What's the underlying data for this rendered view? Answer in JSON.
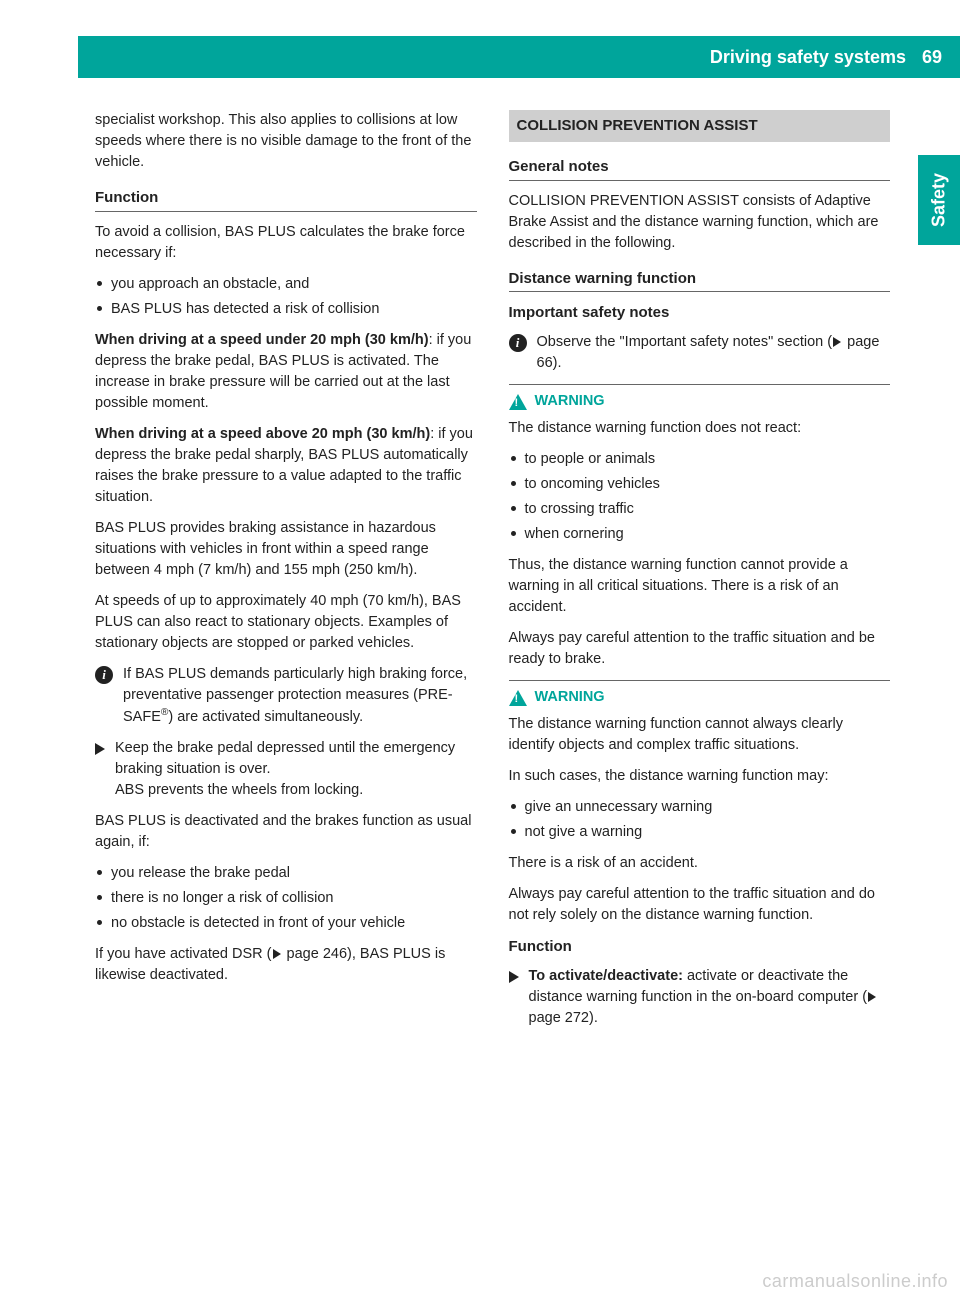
{
  "colors": {
    "accent": "#00a59b",
    "header_box_bg": "#cfcfcf",
    "text": "#222222",
    "page_bg": "#ffffff",
    "watermark": "#cccccc",
    "rule": "#666666"
  },
  "header": {
    "section_title": "Driving safety systems",
    "page_number": "69"
  },
  "side_tab": "Safety",
  "left_column": {
    "intro": "specialist workshop. This also applies to collisions at low speeds where there is no visible damage to the front of the vehicle.",
    "function_heading": "Function",
    "function_lead": "To avoid a collision, BAS PLUS calculates the brake force necessary if:",
    "function_bullets": [
      "you approach an obstacle, and",
      "BAS PLUS has detected a risk of collision"
    ],
    "under_speed_bold": "When driving at a speed under 20 mph (30 km/h)",
    "under_speed_rest": ": if you depress the brake pedal, BAS PLUS is activated. The increase in brake pressure will be carried out at the last possible moment.",
    "above_speed_bold": "When driving at a speed above 20 mph (30 km/h)",
    "above_speed_rest": ": if you depress the brake pedal sharply, BAS PLUS automatically raises the brake pressure to a value adapted to the traffic situation.",
    "p_range": "BAS PLUS provides braking assistance in hazardous situations with vehicles in front within a speed range between 4 mph (7 km/h) and 155 mph (250 km/h).",
    "p_stationary": "At speeds of up to approximately 40 mph (70 km/h), BAS PLUS can also react to stationary objects. Examples of stationary objects are stopped or parked vehicles.",
    "info_note_pre": "If BAS PLUS demands particularly high braking force, preventative passenger protection measures (PRE-SAFE",
    "info_note_post": ") are activated simultaneously.",
    "action_note_l1": "Keep the brake pedal depressed until the emergency braking situation is over.",
    "action_note_l2": "ABS prevents the wheels from locking.",
    "deact_lead": "BAS PLUS is deactivated and the brakes function as usual again, if:",
    "deact_bullets": [
      "you release the brake pedal",
      "there is no longer a risk of collision",
      "no obstacle is detected in front of your vehicle"
    ],
    "dsr_pre": "If you have activated DSR (",
    "dsr_page": " page 246",
    "dsr_post": "), BAS PLUS is likewise deactivated."
  },
  "right_column": {
    "box_heading": "COLLISION PREVENTION ASSIST",
    "general_notes_heading": "General notes",
    "general_notes_body": "COLLISION PREVENTION ASSIST consists of Adaptive Brake Assist and the distance warning function, which are described in the following.",
    "dwf_heading": "Distance warning function",
    "isn_heading": "Important safety notes",
    "info_note_pre": "Observe the \"Important safety notes\" section (",
    "info_note_page": " page 66",
    "info_note_post": ").",
    "warning_label": "WARNING",
    "warn1_lead": "The distance warning function does not react:",
    "warn1_bullets": [
      "to people or animals",
      "to oncoming vehicles",
      "to crossing traffic",
      "when cornering"
    ],
    "warn1_p1": "Thus, the distance warning function cannot provide a warning in all critical situations. There is a risk of an accident.",
    "warn1_p2": "Always pay careful attention to the traffic situation and be ready to brake.",
    "warn2_lead": "The distance warning function cannot always clearly identify objects and complex traffic situations.",
    "warn2_p1": "In such cases, the distance warning function may:",
    "warn2_bullets": [
      "give an unnecessary warning",
      "not give a warning"
    ],
    "warn2_p2": "There is a risk of an accident.",
    "warn2_p3": "Always pay careful attention to the traffic situation and do not rely solely on the distance warning function.",
    "function_heading": "Function",
    "action_bold": "To activate/deactivate:",
    "action_rest_pre": " activate or deactivate the distance warning function in the on-board computer (",
    "action_page": " page 272",
    "action_rest_post": ")."
  },
  "watermark": "carmanualsonline.info"
}
